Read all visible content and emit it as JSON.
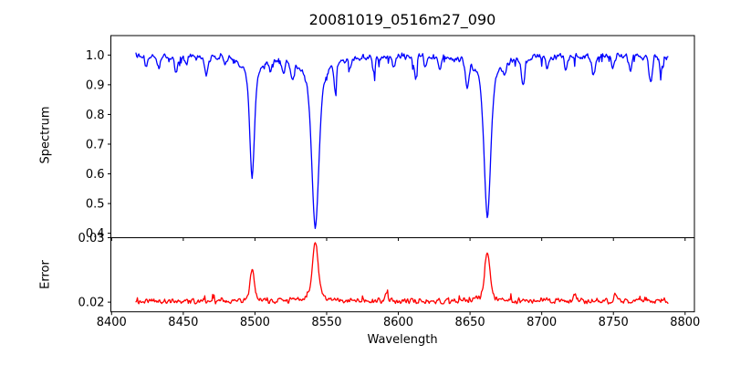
{
  "figure": {
    "background": "#ffffff",
    "axis_color": "#000000",
    "tick_label_color": "#000000"
  },
  "chart_data": {
    "type": "line",
    "title": "20081019_0516m27_090",
    "xlabel": "Wavelength",
    "grid": false,
    "legend": "none",
    "xlim": [
      8399.5,
      8806.5
    ],
    "x_data_range": [
      8417,
      8788
    ],
    "x_step": 0.5,
    "x_ticks": [
      {
        "value": 8400,
        "label": "8400"
      },
      {
        "value": 8450,
        "label": "8450"
      },
      {
        "value": 8500,
        "label": "8500"
      },
      {
        "value": 8550,
        "label": "8550"
      },
      {
        "value": 8600,
        "label": "8600"
      },
      {
        "value": 8650,
        "label": "8650"
      },
      {
        "value": 8700,
        "label": "8700"
      },
      {
        "value": 8750,
        "label": "8750"
      },
      {
        "value": 8800,
        "label": "8800"
      }
    ],
    "panels": [
      {
        "name": "spectrum",
        "ylabel": "Spectrum",
        "color": "#0000ff",
        "ylim": [
          0.385,
          1.0655
        ],
        "y_ticks": [
          {
            "value": 0.4,
            "label": "0.4"
          },
          {
            "value": 0.5,
            "label": "0.5"
          },
          {
            "value": 0.6,
            "label": "0.6"
          },
          {
            "value": 0.7,
            "label": "0.7"
          },
          {
            "value": 0.8,
            "label": "0.8"
          },
          {
            "value": 0.9,
            "label": "0.9"
          },
          {
            "value": 1.0,
            "label": "1.0"
          }
        ],
        "continuum": 0.995,
        "noise_amplitude": 0.013,
        "absorption_lines": [
          {
            "center": 8498.0,
            "min_value": 0.585,
            "core_width": 1.6,
            "wing_width": 5.5
          },
          {
            "center": 8542.1,
            "min_value": 0.415,
            "core_width": 2.4,
            "wing_width": 8.0
          },
          {
            "center": 8662.1,
            "min_value": 0.45,
            "core_width": 2.2,
            "wing_width": 7.0
          }
        ],
        "minor_lines": [
          [
            8424,
            0.028,
            1.0
          ],
          [
            8433,
            0.038,
            1.1
          ],
          [
            8445,
            0.048,
            1.2
          ],
          [
            8452,
            0.028,
            0.9
          ],
          [
            8466,
            0.06,
            1.3
          ],
          [
            8479,
            0.028,
            0.9
          ],
          [
            8511,
            0.038,
            1.0
          ],
          [
            8520,
            0.046,
            1.0
          ],
          [
            8526,
            0.06,
            1.2
          ],
          [
            8556,
            0.085,
            0.9
          ],
          [
            8566,
            0.028,
            0.9
          ],
          [
            8583,
            0.05,
            1.0
          ],
          [
            8597,
            0.042,
            0.9
          ],
          [
            8612,
            0.068,
            1.0
          ],
          [
            8619,
            0.038,
            0.8
          ],
          [
            8629,
            0.044,
            1.0
          ],
          [
            8648,
            0.09,
            1.1
          ],
          [
            8674,
            0.038,
            1.0
          ],
          [
            8687,
            0.098,
            1.1
          ],
          [
            8704,
            0.036,
            1.0
          ],
          [
            8717,
            0.046,
            1.0
          ],
          [
            8736,
            0.058,
            1.2
          ],
          [
            8750,
            0.038,
            1.0
          ],
          [
            8762,
            0.048,
            1.0
          ],
          [
            8776,
            0.08,
            1.2
          ],
          [
            8783,
            0.048,
            0.9
          ]
        ]
      },
      {
        "name": "error",
        "ylabel": "Error",
        "color": "#ff0000",
        "ylim": [
          0.0185,
          0.03
        ],
        "y_ticks": [
          {
            "value": 0.02,
            "label": "0.02"
          },
          {
            "value": 0.03,
            "label": "0.03"
          }
        ],
        "baseline": 0.0202,
        "noise_amplitude": 0.0005,
        "peaks": [
          {
            "center": 8498.0,
            "peak_value": 0.0253,
            "core_width": 1.4,
            "wing_width": 4.0
          },
          {
            "center": 8542.1,
            "peak_value": 0.0294,
            "core_width": 2.0,
            "wing_width": 5.0
          },
          {
            "center": 8662.1,
            "peak_value": 0.0276,
            "core_width": 1.8,
            "wing_width": 4.5
          }
        ],
        "minor_peaks": [
          [
            8592,
            0.0216,
            1.0
          ],
          [
            8723,
            0.0213,
            1.0
          ],
          [
            8751,
            0.0211,
            0.9
          ]
        ]
      }
    ]
  }
}
